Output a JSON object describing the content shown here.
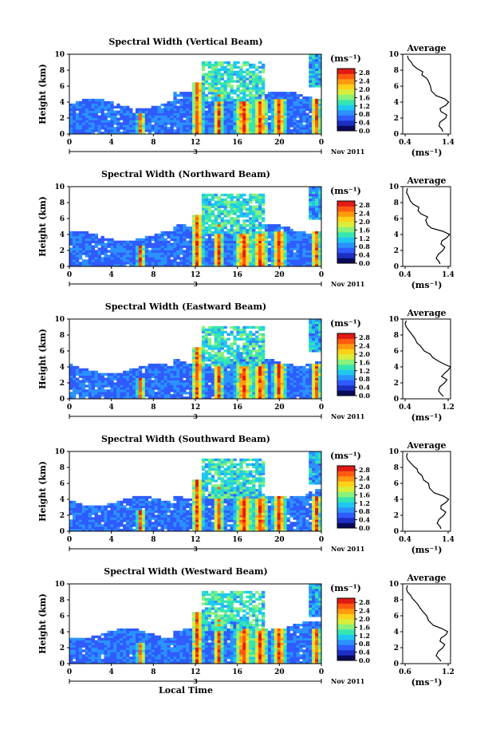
{
  "colorbar": {
    "unit": "(ms⁻¹)",
    "ticks": [
      "0.0",
      "0.4",
      "0.8",
      "1.2",
      "1.6",
      "2.0",
      "2.4",
      "2.8"
    ],
    "vmin": 0.0,
    "vmax": 3.0,
    "colors": [
      "#0a0a5a",
      "#1d2fc2",
      "#2f5bff",
      "#2b92ff",
      "#1fc8f0",
      "#36e6b0",
      "#8af27a",
      "#d8ee3a",
      "#ffd21a",
      "#ff9a10",
      "#ff5a10",
      "#e01a14"
    ]
  },
  "axis": {
    "height_label": "Height (km)",
    "height_ticks": [
      "0",
      "2",
      "4",
      "6",
      "8",
      "10"
    ],
    "time_ticks": [
      "0",
      "4",
      "8",
      "12",
      "16",
      "20",
      "0"
    ],
    "date_day": "3",
    "date_month": "Nov 2011",
    "xlabel": "Local Time",
    "avg_xlabel": "(ms⁻¹)"
  },
  "chart_data": [
    {
      "type": "heatmap",
      "title": "Spectral Width (Vertical Beam)",
      "x": [
        0,
        24
      ],
      "ylim": [
        0,
        10
      ],
      "xlabel": "",
      "ylabel": "Height (km)",
      "avg": {
        "title": "Average",
        "xlim": [
          0.4,
          1.4
        ],
        "xticks": [
          "0.4",
          "1.4"
        ],
        "profile": [
          [
            1.24,
            0.3
          ],
          [
            1.22,
            0.6
          ],
          [
            1.16,
            1.0
          ],
          [
            1.18,
            1.5
          ],
          [
            1.3,
            2.0
          ],
          [
            1.32,
            2.4
          ],
          [
            1.2,
            2.8
          ],
          [
            1.18,
            3.2
          ],
          [
            1.3,
            3.6
          ],
          [
            1.36,
            4.0
          ],
          [
            1.28,
            4.4
          ],
          [
            1.1,
            4.8
          ],
          [
            1.0,
            5.4
          ],
          [
            0.98,
            6.0
          ],
          [
            0.94,
            6.6
          ],
          [
            0.9,
            7.0
          ],
          [
            0.8,
            7.4
          ],
          [
            0.82,
            7.8
          ],
          [
            0.7,
            8.2
          ],
          [
            0.62,
            8.6
          ],
          [
            0.58,
            9.0
          ],
          [
            0.52,
            9.4
          ],
          [
            0.5,
            9.8
          ]
        ]
      }
    },
    {
      "type": "heatmap",
      "title": "Spectral Width (Northward Beam)",
      "x": [
        0,
        24
      ],
      "ylim": [
        0,
        10
      ],
      "xlabel": "",
      "ylabel": "Height (km)",
      "avg": {
        "title": "Average",
        "xlim": [
          0.4,
          1.4
        ],
        "xticks": [
          "0.4",
          "1.4"
        ],
        "profile": [
          [
            1.18,
            0.3
          ],
          [
            1.16,
            0.6
          ],
          [
            1.1,
            1.0
          ],
          [
            1.14,
            1.5
          ],
          [
            1.24,
            2.0
          ],
          [
            1.28,
            2.4
          ],
          [
            1.2,
            2.8
          ],
          [
            1.22,
            3.2
          ],
          [
            1.32,
            3.6
          ],
          [
            1.38,
            4.0
          ],
          [
            1.24,
            4.4
          ],
          [
            1.0,
            4.8
          ],
          [
            0.92,
            5.2
          ],
          [
            0.88,
            5.8
          ],
          [
            0.92,
            6.2
          ],
          [
            0.78,
            6.6
          ],
          [
            0.72,
            7.0
          ],
          [
            0.74,
            7.4
          ],
          [
            0.62,
            7.8
          ],
          [
            0.56,
            8.2
          ],
          [
            0.52,
            8.8
          ],
          [
            0.48,
            9.3
          ],
          [
            0.5,
            9.8
          ]
        ]
      }
    },
    {
      "type": "heatmap",
      "title": "Spectral Width (Eastward Beam)",
      "x": [
        0,
        24
      ],
      "ylim": [
        0,
        10
      ],
      "xlabel": "",
      "ylabel": "Height (km)",
      "avg": {
        "title": "Average",
        "xlim": [
          0.4,
          1.2
        ],
        "xticks": [
          "0.4",
          "1.2"
        ],
        "profile": [
          [
            1.08,
            0.3
          ],
          [
            1.04,
            0.6
          ],
          [
            1.0,
            1.0
          ],
          [
            1.02,
            1.5
          ],
          [
            1.1,
            2.0
          ],
          [
            1.14,
            2.4
          ],
          [
            1.05,
            2.8
          ],
          [
            1.1,
            3.2
          ],
          [
            1.16,
            3.6
          ],
          [
            1.2,
            4.0
          ],
          [
            1.08,
            4.4
          ],
          [
            0.98,
            4.8
          ],
          [
            0.9,
            5.2
          ],
          [
            0.86,
            5.6
          ],
          [
            0.76,
            6.0
          ],
          [
            0.7,
            6.6
          ],
          [
            0.64,
            7.0
          ],
          [
            0.6,
            7.6
          ],
          [
            0.56,
            8.0
          ],
          [
            0.5,
            8.6
          ],
          [
            0.46,
            9.0
          ],
          [
            0.44,
            9.4
          ],
          [
            0.46,
            9.8
          ]
        ]
      }
    },
    {
      "type": "heatmap",
      "title": "Spectral Width (Southward Beam)",
      "x": [
        0,
        24
      ],
      "ylim": [
        0,
        10
      ],
      "xlabel": "",
      "ylabel": "Height (km)",
      "avg": {
        "title": "Average",
        "xlim": [
          0.4,
          1.4
        ],
        "xticks": [
          "0.4",
          "1.4"
        ],
        "profile": [
          [
            1.2,
            0.3
          ],
          [
            1.18,
            0.6
          ],
          [
            1.12,
            1.0
          ],
          [
            1.16,
            1.5
          ],
          [
            1.26,
            2.0
          ],
          [
            1.3,
            2.4
          ],
          [
            1.2,
            2.8
          ],
          [
            1.2,
            3.2
          ],
          [
            1.3,
            3.6
          ],
          [
            1.36,
            4.0
          ],
          [
            1.26,
            4.4
          ],
          [
            1.06,
            4.8
          ],
          [
            0.96,
            5.4
          ],
          [
            0.94,
            6.0
          ],
          [
            0.84,
            6.4
          ],
          [
            0.8,
            7.0
          ],
          [
            0.72,
            7.4
          ],
          [
            0.7,
            7.8
          ],
          [
            0.62,
            8.2
          ],
          [
            0.56,
            8.6
          ],
          [
            0.5,
            9.0
          ],
          [
            0.48,
            9.4
          ],
          [
            0.5,
            9.8
          ]
        ]
      }
    },
    {
      "type": "heatmap",
      "title": "Spectral Width (Westward Beam)",
      "x": [
        0,
        24
      ],
      "ylim": [
        0,
        10
      ],
      "xlabel": "Local Time",
      "ylabel": "Height (km)",
      "avg": {
        "title": "Average",
        "xlim": [
          0.4,
          1.4
        ],
        "xticks": [
          "0.6",
          "1.2"
        ],
        "profile": [
          [
            1.2,
            0.3
          ],
          [
            1.16,
            0.6
          ],
          [
            1.1,
            1.0
          ],
          [
            1.14,
            1.5
          ],
          [
            1.24,
            2.0
          ],
          [
            1.28,
            2.4
          ],
          [
            1.18,
            2.8
          ],
          [
            1.2,
            3.2
          ],
          [
            1.3,
            3.6
          ],
          [
            1.34,
            4.0
          ],
          [
            1.22,
            4.4
          ],
          [
            1.04,
            4.8
          ],
          [
            0.94,
            5.4
          ],
          [
            0.9,
            6.0
          ],
          [
            0.84,
            6.4
          ],
          [
            0.76,
            7.0
          ],
          [
            0.72,
            7.4
          ],
          [
            0.66,
            7.8
          ],
          [
            0.6,
            8.2
          ],
          [
            0.56,
            8.6
          ],
          [
            0.5,
            9.0
          ],
          [
            0.48,
            9.4
          ],
          [
            0.5,
            9.8
          ]
        ]
      }
    }
  ]
}
